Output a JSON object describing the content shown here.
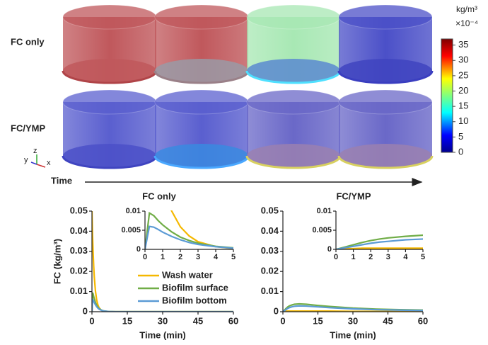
{
  "figure": {
    "row_labels": [
      "FC only",
      "FC/YMP"
    ],
    "time_label": "Time",
    "axis_triad": [
      "y",
      "z",
      "x"
    ],
    "colorbar": {
      "unit": "kg/m³",
      "scale": "×10⁻⁴",
      "lim": [
        0,
        37
      ],
      "ticks": [
        0,
        5,
        10,
        15,
        20,
        25,
        30,
        35
      ]
    }
  },
  "chart_data": [
    {
      "type": "line",
      "title": "FC only",
      "xlabel": "Time (min)",
      "ylabel": "FC (kg/m³)",
      "x": [
        0,
        0.25,
        0.5,
        0.75,
        1,
        1.5,
        2,
        2.5,
        3,
        4,
        5,
        7,
        10,
        15,
        20,
        30,
        40,
        50,
        60
      ],
      "series": [
        {
          "name": "Wash water",
          "color": "#f5b800",
          "values": [
            0.05,
            0.0383,
            0.0293,
            0.0224,
            0.0172,
            0.0101,
            0.0059,
            0.0035,
            0.002,
            0.0007,
            0.0002,
            0,
            0,
            0,
            0,
            0,
            0,
            0,
            0
          ]
        },
        {
          "name": "Biofilm surface",
          "color": "#70ad47",
          "values": [
            0,
            0.0095,
            0.0088,
            0.0075,
            0.0064,
            0.0046,
            0.0032,
            0.0023,
            0.0016,
            0.0008,
            0.0004,
            0.0001,
            0,
            0,
            0,
            0,
            0,
            0,
            0
          ]
        },
        {
          "name": "Biofilm bottom",
          "color": "#5b9bd5",
          "values": [
            0,
            0.006,
            0.0058,
            0.0052,
            0.0045,
            0.0034,
            0.0025,
            0.0018,
            0.0013,
            0.0007,
            0.0003,
            0.0001,
            0,
            0,
            0,
            0,
            0,
            0,
            0
          ]
        }
      ],
      "xlim": [
        0,
        60
      ],
      "xticks": [
        0,
        15,
        30,
        45,
        60
      ],
      "ylim": [
        0,
        0.05
      ],
      "yticks": [
        0,
        0.01,
        0.02,
        0.03,
        0.04,
        0.05
      ],
      "legend": "center right",
      "inset": {
        "xlim": [
          0,
          5
        ],
        "xticks": [
          0,
          1,
          2,
          3,
          4,
          5
        ],
        "ylim": [
          0,
          0.01
        ],
        "yticks": [
          0,
          0.005,
          0.01
        ]
      }
    },
    {
      "type": "line",
      "title": "FC/YMP",
      "xlabel": "Time (min)",
      "x": [
        0,
        0.25,
        0.5,
        0.75,
        1,
        1.5,
        2,
        2.5,
        3,
        4,
        5,
        7,
        10,
        15,
        20,
        30,
        40,
        50,
        60
      ],
      "series": [
        {
          "color": "#f5b800",
          "values": [
            0,
            0.0001,
            0.0002,
            0.0002,
            0.0002,
            0.0003,
            0.0003,
            0.0003,
            0.0003,
            0.0003,
            0.0003,
            0.0003,
            0.0003,
            0.0003,
            0.0003,
            0.0002,
            0.0002,
            0.0001,
            0.0001
          ]
        },
        {
          "color": "#70ad47",
          "values": [
            0,
            0.0003,
            0.0006,
            0.0009,
            0.0012,
            0.0018,
            0.0023,
            0.0027,
            0.003,
            0.0034,
            0.0037,
            0.0039,
            0.0037,
            0.0031,
            0.0026,
            0.0018,
            0.0013,
            0.001,
            0.0008
          ]
        },
        {
          "color": "#5b9bd5",
          "values": [
            0,
            0.0002,
            0.0004,
            0.0006,
            0.0008,
            0.0012,
            0.0016,
            0.0019,
            0.0021,
            0.0025,
            0.0027,
            0.0029,
            0.0028,
            0.0024,
            0.002,
            0.0014,
            0.001,
            0.0008,
            0.0006
          ]
        }
      ],
      "xlim": [
        0,
        60
      ],
      "xticks": [
        0,
        15,
        30,
        45,
        60
      ],
      "ylim": [
        0,
        0.05
      ],
      "yticks": [
        0,
        0.01,
        0.02,
        0.03,
        0.04,
        0.05
      ],
      "inset": {
        "xlim": [
          0,
          5
        ],
        "xticks": [
          0,
          1,
          2,
          3,
          4,
          5
        ],
        "ylim": [
          0,
          0.01
        ],
        "yticks": [
          0,
          0.005,
          0.01
        ]
      }
    }
  ]
}
